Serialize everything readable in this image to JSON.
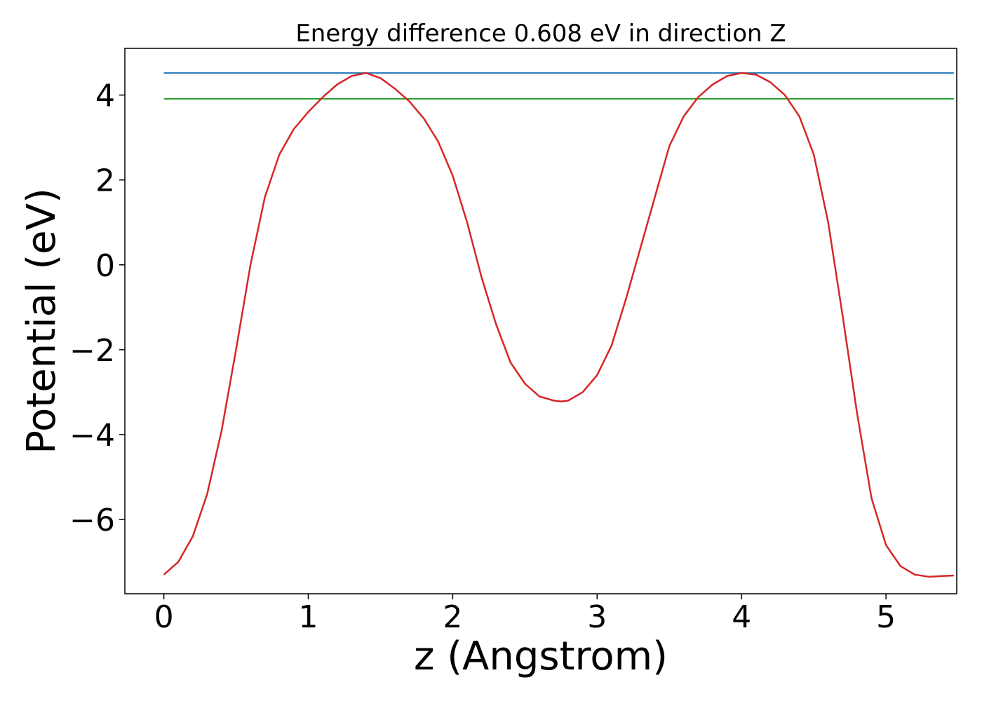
{
  "chart_data": {
    "type": "line",
    "title": "Energy difference 0.608 eV in direction Z",
    "xlabel": "z (Angstrom)",
    "ylabel": "Potential (eV)",
    "xlim": [
      -0.27,
      5.49
    ],
    "ylim": [
      -7.75,
      5.1
    ],
    "xticks": [
      0,
      1,
      2,
      3,
      4,
      5
    ],
    "xtick_labels": [
      "0",
      "1",
      "2",
      "3",
      "4",
      "5"
    ],
    "yticks": [
      -6,
      -4,
      -2,
      0,
      2,
      4
    ],
    "ytick_labels": [
      "−6",
      "−4",
      "−2",
      "0",
      "2",
      "4"
    ],
    "grid": false,
    "legend": "none",
    "series": [
      {
        "color": "#1f77b4",
        "x": [
          0,
          5.47
        ],
        "y": [
          4.52,
          4.52
        ]
      },
      {
        "color": "#2ca02c",
        "x": [
          0,
          5.47
        ],
        "y": [
          3.91,
          3.91
        ]
      },
      {
        "color": "#d62728",
        "x": [
          0,
          0.1,
          0.2,
          0.3,
          0.4,
          0.5,
          0.6,
          0.7,
          0.8,
          0.9,
          1.0,
          1.1,
          1.2,
          1.3,
          1.4,
          1.5,
          1.6,
          1.7,
          1.8,
          1.9,
          2.0,
          2.1,
          2.2,
          2.3,
          2.4,
          2.5,
          2.6,
          2.7,
          2.75,
          2.8,
          2.9,
          3.0,
          3.1,
          3.2,
          3.3,
          3.4,
          3.5,
          3.6,
          3.7,
          3.8,
          3.9,
          4.0,
          4.1,
          4.2,
          4.3,
          4.4,
          4.5,
          4.6,
          4.7,
          4.8,
          4.9,
          5.0,
          5.1,
          5.2,
          5.3,
          5.4,
          5.47
        ],
        "y": [
          -7.3,
          -7.0,
          -6.4,
          -5.4,
          -3.9,
          -2.0,
          0.0,
          1.6,
          2.6,
          3.2,
          3.6,
          3.95,
          4.25,
          4.45,
          4.52,
          4.4,
          4.15,
          3.85,
          3.45,
          2.9,
          2.1,
          1.0,
          -0.3,
          -1.4,
          -2.3,
          -2.8,
          -3.1,
          -3.2,
          -3.22,
          -3.2,
          -3.0,
          -2.6,
          -1.9,
          -0.8,
          0.4,
          1.6,
          2.8,
          3.5,
          3.95,
          4.25,
          4.45,
          4.52,
          4.48,
          4.3,
          4.0,
          3.5,
          2.6,
          1.0,
          -1.2,
          -3.5,
          -5.5,
          -6.6,
          -7.1,
          -7.3,
          -7.35,
          -7.33,
          -7.32
        ]
      }
    ]
  }
}
